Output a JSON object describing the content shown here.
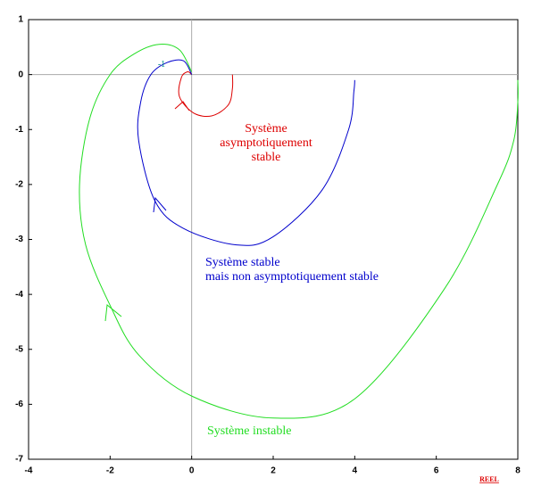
{
  "chart_data": {
    "type": "line",
    "xlim": [
      -4,
      8
    ],
    "ylim": [
      -7,
      1
    ],
    "xticks": [
      -4,
      -2,
      0,
      2,
      4,
      6,
      8
    ],
    "yticks": [
      1,
      0,
      -1,
      -2,
      -3,
      -4,
      -5,
      -6,
      -7
    ],
    "x_label": "REEL",
    "series": [
      {
        "color": "#dd0000",
        "x": [
          1.0,
          1.0,
          0.9,
          0.5,
          0.05,
          -0.3,
          -0.25,
          -0.1,
          0.0
        ],
        "y": [
          0.0,
          -0.25,
          -0.55,
          -0.75,
          -0.7,
          -0.4,
          -0.05,
          0.05,
          0.0
        ]
      },
      {
        "color": "#0000cc",
        "x": [
          4.0,
          3.98,
          3.85,
          3.2,
          2.0,
          1.1,
          -0.2,
          -0.9,
          -1.3,
          -1.25,
          -1.0,
          -0.6,
          -0.2,
          0.0
        ],
        "y": [
          -0.1,
          -0.3,
          -1.0,
          -2.1,
          -2.95,
          -3.1,
          -2.8,
          -2.3,
          -1.2,
          -0.5,
          0.0,
          0.22,
          0.25,
          0.0
        ]
      },
      {
        "color": "#22dd22",
        "x": [
          8.0,
          8.0,
          7.9,
          7.5,
          6.2,
          4.0,
          2.0,
          0.0,
          -1.3,
          -2.0,
          -2.6,
          -2.75,
          -2.5,
          -2.0,
          -1.4,
          -0.8,
          -0.3,
          0.0
        ],
        "y": [
          -0.1,
          -0.5,
          -1.2,
          -2.0,
          -3.9,
          -5.9,
          -6.25,
          -5.85,
          -5.1,
          -4.2,
          -3.1,
          -2.0,
          -0.8,
          0.0,
          0.38,
          0.55,
          0.45,
          0.05
        ]
      }
    ],
    "annotations": [
      "Système\nasymptotiquement\nstable",
      "Système stable\nmais non asymptotiquement stable",
      "Système instable",
      "-1"
    ]
  }
}
